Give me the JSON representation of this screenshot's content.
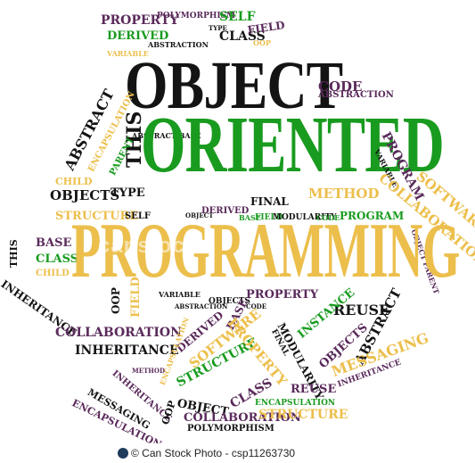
{
  "colors": {
    "black": "#141414",
    "green": "#199b1f",
    "gold": "#ecbf4c",
    "purple": "#5a2a5b",
    "footer_logo": "#1f3b5c"
  },
  "words": {
    "object": "OBJECT",
    "oriented": "ORIENTED",
    "programming": "PROGRAMMING",
    "property_top": "PROPERTY",
    "derived_top": "DERIVED",
    "abstraction_top": "ABSTRACTION",
    "polymorphism_top": "POLYMORPHISM",
    "variable_top": "VARIABLE",
    "self_top": "SELF",
    "type_top": "TYPE",
    "class_top": "CLASS",
    "field_top": "FIELD",
    "oop_top": "OOP",
    "code": "CODE",
    "abstraction_code": "ABSTRACTION",
    "abstract_left": "ABSTRACT",
    "encapsulation_left": "ENCAPSULATION",
    "abstract_base": "ABSTRACT BASE",
    "this_mid": "THIS",
    "parent_mid": "PARENT",
    "child_mid": "CHILD",
    "objects_mid": "OBJECTS",
    "type_mid": "TYPE",
    "structure_mid": "STRUCTURE",
    "self_mid": "SELF",
    "final_mid": "FINAL",
    "method_mid": "METHOD",
    "program_mid": "PROGRAM",
    "program_right": "PROGRAM",
    "variable_right": "VARIABLE",
    "software_right": "SOFTWARE",
    "collaboration_right": "COLLABORATION",
    "object_parent_right": "OBJECT PARENT",
    "base_left": "BASE",
    "this_left": "THIS",
    "class_left": "CLASS",
    "child_left": "CHILD",
    "inheritance_left": "INHERITANCE",
    "oop_left": "OOP",
    "field_left": "FIELD",
    "variable_mid2": "VARIABLE",
    "abstraction_mid2": "ABSTRACTION",
    "objects_mid2": "OBJECTS",
    "property_mid2": "PROPERTY",
    "code_mid2": "CODE",
    "base_mid2": "BASE",
    "reuse_mid2": "REUSE",
    "collaboration_left": "COLLABORATION",
    "inheritance_left2": "INHERITANCE",
    "method_low": "METHOD",
    "derived_low": "DERIVED",
    "encapsulation_low": "ENCAPSULATION",
    "software_low": "SOFTWARE",
    "structure_low": "STRUCTURE",
    "property_low": "PROPERTY",
    "modularity_low": "MODULARITY",
    "final_low": "FINAL",
    "instance_low": "INSTANCE",
    "objects_low": "OBJECTS",
    "abstract_low": "ABSTRACT",
    "messaging_low": "MESSAGING",
    "inheritance_low": "INHERITANCE",
    "reuse_low": "REUSE",
    "object_low": "OBJECT",
    "class_low": "CLASS",
    "inheritance_low2": "INHERITANCE",
    "messaging_low2": "MESSAGING",
    "encapsulation_low2": "ENCAPSULATION",
    "oop_low": "OOP",
    "collaboration_low": "COLLABORATION",
    "polymorphism_low": "POLYMORPHISM",
    "encapsulation_bottom": "ENCAPSULATION",
    "structure_bottom": "STRUCTURE",
    "object_mid": "OBJECT",
    "derived_mid": "DERIVED",
    "base_mid": "BASE",
    "field_mid": "FIELD",
    "modularity_mid": "MODULARITY",
    "code_mid": "CODE"
  },
  "footer": {
    "left": "© Can Stock Photo - csp11263730",
    "right": "csp11263730"
  },
  "watermark": "canstock"
}
